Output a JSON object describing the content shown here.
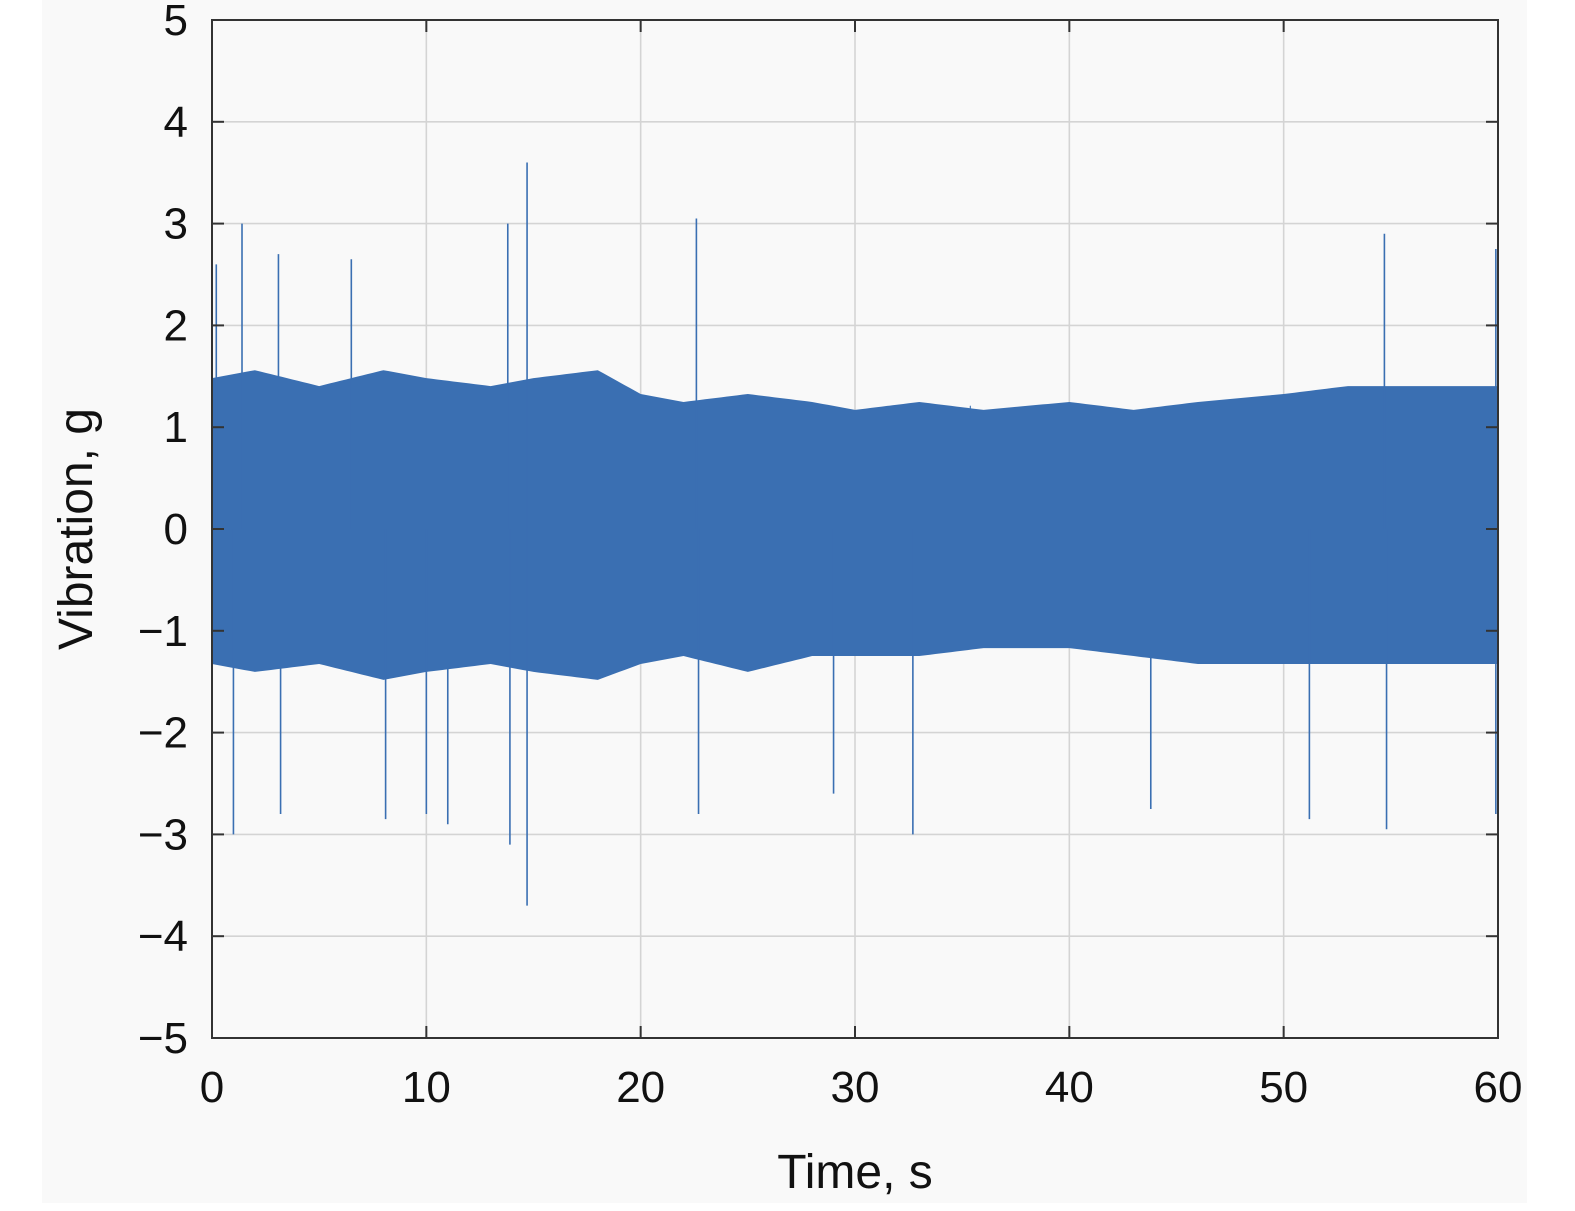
{
  "chart_data": {
    "type": "line",
    "title": "",
    "xlabel": "Time, s",
    "ylabel": "Vibration, g",
    "xlim": [
      0,
      60
    ],
    "ylim": [
      -5,
      5
    ],
    "xticks": [
      0,
      10,
      20,
      30,
      40,
      50,
      60
    ],
    "yticks": [
      5,
      4,
      3,
      2,
      1,
      0,
      -1,
      -2,
      -3,
      -4,
      -5
    ],
    "xtick_labels": [
      "0",
      "10",
      "20",
      "30",
      "40",
      "50",
      "60"
    ],
    "ytick_labels": [
      "5",
      "4",
      "3",
      "2",
      "1",
      "0",
      "−1",
      "−2",
      "−3",
      "−4",
      "−5"
    ],
    "grid": true,
    "series": [
      {
        "color": "#3a6fb2",
        "signal": "random vibration, approx. ±1.5 g typical envelope",
        "envelope_x": [
          0,
          2,
          5,
          8,
          10,
          13,
          15,
          18,
          20,
          22,
          25,
          28,
          30,
          33,
          36,
          40,
          43,
          46,
          50,
          53,
          56,
          60
        ],
        "envelope_upper": [
          1.9,
          2.0,
          1.8,
          2.0,
          1.9,
          1.8,
          1.9,
          2.0,
          1.7,
          1.6,
          1.7,
          1.6,
          1.5,
          1.6,
          1.5,
          1.6,
          1.5,
          1.6,
          1.7,
          1.8,
          1.8,
          1.8
        ],
        "envelope_lower": [
          -1.7,
          -1.8,
          -1.7,
          -1.9,
          -1.8,
          -1.7,
          -1.8,
          -1.9,
          -1.7,
          -1.6,
          -1.8,
          -1.6,
          -1.6,
          -1.6,
          -1.5,
          -1.5,
          -1.6,
          -1.7,
          -1.7,
          -1.7,
          -1.7,
          -1.7
        ],
        "peaks": [
          {
            "x": 0.2,
            "y": 2.6
          },
          {
            "x": 1.4,
            "y": 3.0
          },
          {
            "x": 1.0,
            "y": -3.0
          },
          {
            "x": 3.1,
            "y": 2.7
          },
          {
            "x": 3.2,
            "y": -2.8
          },
          {
            "x": 6.5,
            "y": 2.65
          },
          {
            "x": 8.1,
            "y": -2.85
          },
          {
            "x": 10.0,
            "y": -2.8
          },
          {
            "x": 11.0,
            "y": -2.9
          },
          {
            "x": 13.8,
            "y": 3.0
          },
          {
            "x": 13.9,
            "y": -3.1
          },
          {
            "x": 14.7,
            "y": 3.6
          },
          {
            "x": 14.7,
            "y": -3.7
          },
          {
            "x": 22.6,
            "y": 3.05
          },
          {
            "x": 22.7,
            "y": -2.8
          },
          {
            "x": 29.0,
            "y": -2.6
          },
          {
            "x": 32.7,
            "y": -3.0
          },
          {
            "x": 43.8,
            "y": -2.75
          },
          {
            "x": 51.2,
            "y": -2.85
          },
          {
            "x": 54.7,
            "y": 2.9
          },
          {
            "x": 54.8,
            "y": -2.95
          },
          {
            "x": 59.9,
            "y": 2.75
          },
          {
            "x": 59.9,
            "y": -2.8
          }
        ]
      }
    ]
  }
}
